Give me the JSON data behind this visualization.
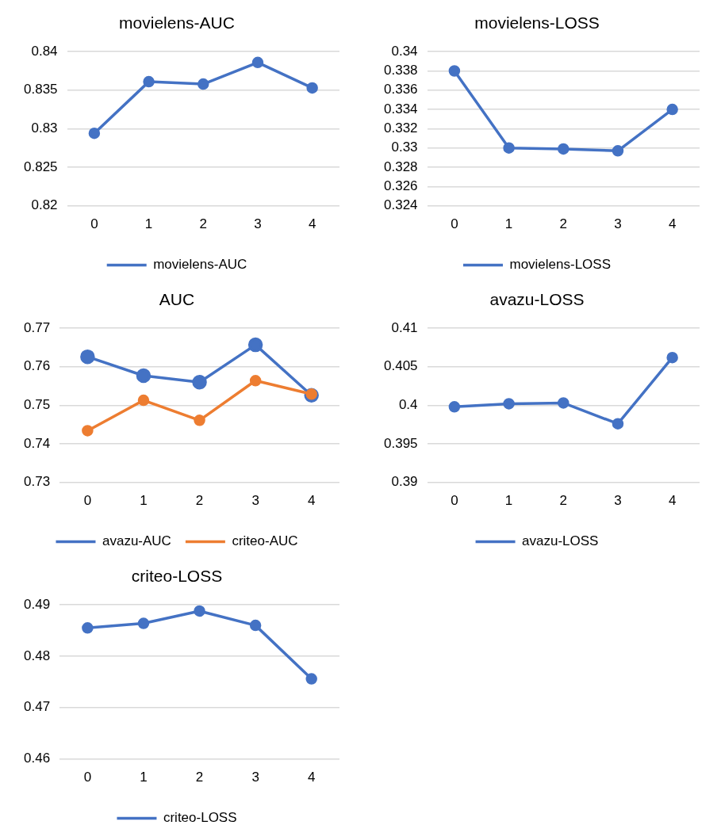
{
  "chart_data": [
    {
      "type": "line",
      "title": "movielens-AUC",
      "categories": [
        "0",
        "1",
        "2",
        "3",
        "4"
      ],
      "series": [
        {
          "name": "movielens-AUC",
          "color": "#4472c4",
          "values": [
            0.8294,
            0.8361,
            0.8358,
            0.8386,
            0.8353
          ]
        }
      ],
      "ylim": [
        0.82,
        0.84
      ],
      "yticks": [
        0.82,
        0.825,
        0.83,
        0.835,
        0.84
      ],
      "grid": "y",
      "legend": "bottom",
      "marker": "circle",
      "line_style": "solid"
    },
    {
      "type": "line",
      "title": "movielens-LOSS",
      "categories": [
        "0",
        "1",
        "2",
        "3",
        "4"
      ],
      "series": [
        {
          "name": "movielens-LOSS",
          "color": "#4472c4",
          "values": [
            0.338,
            0.33,
            0.3299,
            0.3297,
            0.334
          ]
        }
      ],
      "ylim": [
        0.324,
        0.34
      ],
      "yticks": [
        0.324,
        0.326,
        0.328,
        0.33,
        0.332,
        0.334,
        0.336,
        0.338,
        0.34
      ],
      "grid": "y",
      "legend": "bottom",
      "marker": "circle",
      "line_style": "solid"
    },
    {
      "type": "line",
      "title": "AUC",
      "categories": [
        "0",
        "1",
        "2",
        "3",
        "4"
      ],
      "series": [
        {
          "name": "avazu-AUC",
          "color": "#4472c4",
          "values": [
            0.7626,
            0.7577,
            0.756,
            0.7657,
            0.7526
          ]
        },
        {
          "name": "criteo-AUC",
          "color": "#ed7d31",
          "values": [
            0.7434,
            0.7513,
            0.7461,
            0.7564,
            0.7529
          ]
        }
      ],
      "ylim": [
        0.73,
        0.77
      ],
      "yticks": [
        0.73,
        0.74,
        0.75,
        0.76,
        0.77
      ],
      "grid": "y",
      "legend": "bottom",
      "marker": "circle",
      "line_style": "solid"
    },
    {
      "type": "line",
      "title": "avazu-LOSS",
      "categories": [
        "0",
        "1",
        "2",
        "3",
        "4"
      ],
      "series": [
        {
          "name": "avazu-LOSS",
          "color": "#4472c4",
          "values": [
            0.3998,
            0.4002,
            0.4003,
            0.3976,
            0.4062
          ]
        }
      ],
      "ylim": [
        0.39,
        0.41
      ],
      "yticks": [
        0.39,
        0.395,
        0.4,
        0.405,
        0.41
      ],
      "grid": "y",
      "legend": "bottom",
      "marker": "circle",
      "line_style": "solid"
    },
    {
      "type": "line",
      "title": "criteo-LOSS",
      "categories": [
        "0",
        "1",
        "2",
        "3",
        "4"
      ],
      "series": [
        {
          "name": "criteo-LOSS",
          "color": "#4472c4",
          "values": [
            0.4855,
            0.4864,
            0.4888,
            0.486,
            0.4756
          ]
        }
      ],
      "ylim": [
        0.46,
        0.49
      ],
      "yticks": [
        0.46,
        0.47,
        0.48,
        0.49
      ],
      "grid": "y",
      "legend": "bottom",
      "marker": "circle",
      "line_style": "solid"
    }
  ]
}
